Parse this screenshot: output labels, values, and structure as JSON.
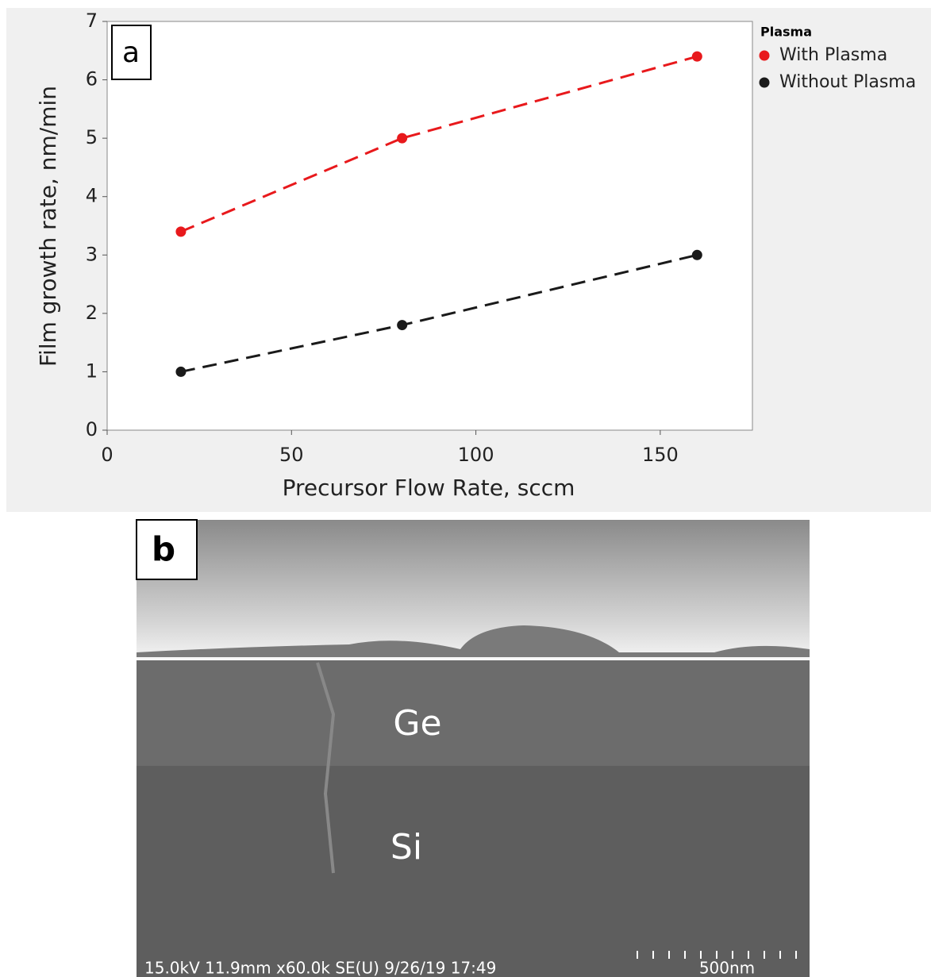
{
  "chart_data": {
    "type": "line",
    "panel_label": "a",
    "xlabel": "Precursor Flow Rate, sccm",
    "ylabel": "Film growth rate, nm/min",
    "x": [
      20,
      80,
      160
    ],
    "series": [
      {
        "name": "With Plasma",
        "color": "#e8191c",
        "values": [
          3.4,
          5.0,
          6.4
        ]
      },
      {
        "name": "Without Plasma",
        "color": "#1a1a1a",
        "values": [
          1.0,
          1.8,
          3.0
        ]
      }
    ],
    "legend_title": "Plasma",
    "legend": "outside-right",
    "xlim": [
      0,
      175
    ],
    "xticks": [
      0,
      50,
      100,
      150
    ],
    "ylim": [
      0,
      7
    ],
    "yticks": [
      0,
      1,
      2,
      3,
      4,
      5,
      6,
      7
    ]
  },
  "figure_b": {
    "panel_label": "b",
    "layer_top": "Ge",
    "layer_bottom": "Si",
    "info": "15.0kV 11.9mm x60.0k SE(U) 9/26/19 17:49",
    "scale": "500nm"
  }
}
